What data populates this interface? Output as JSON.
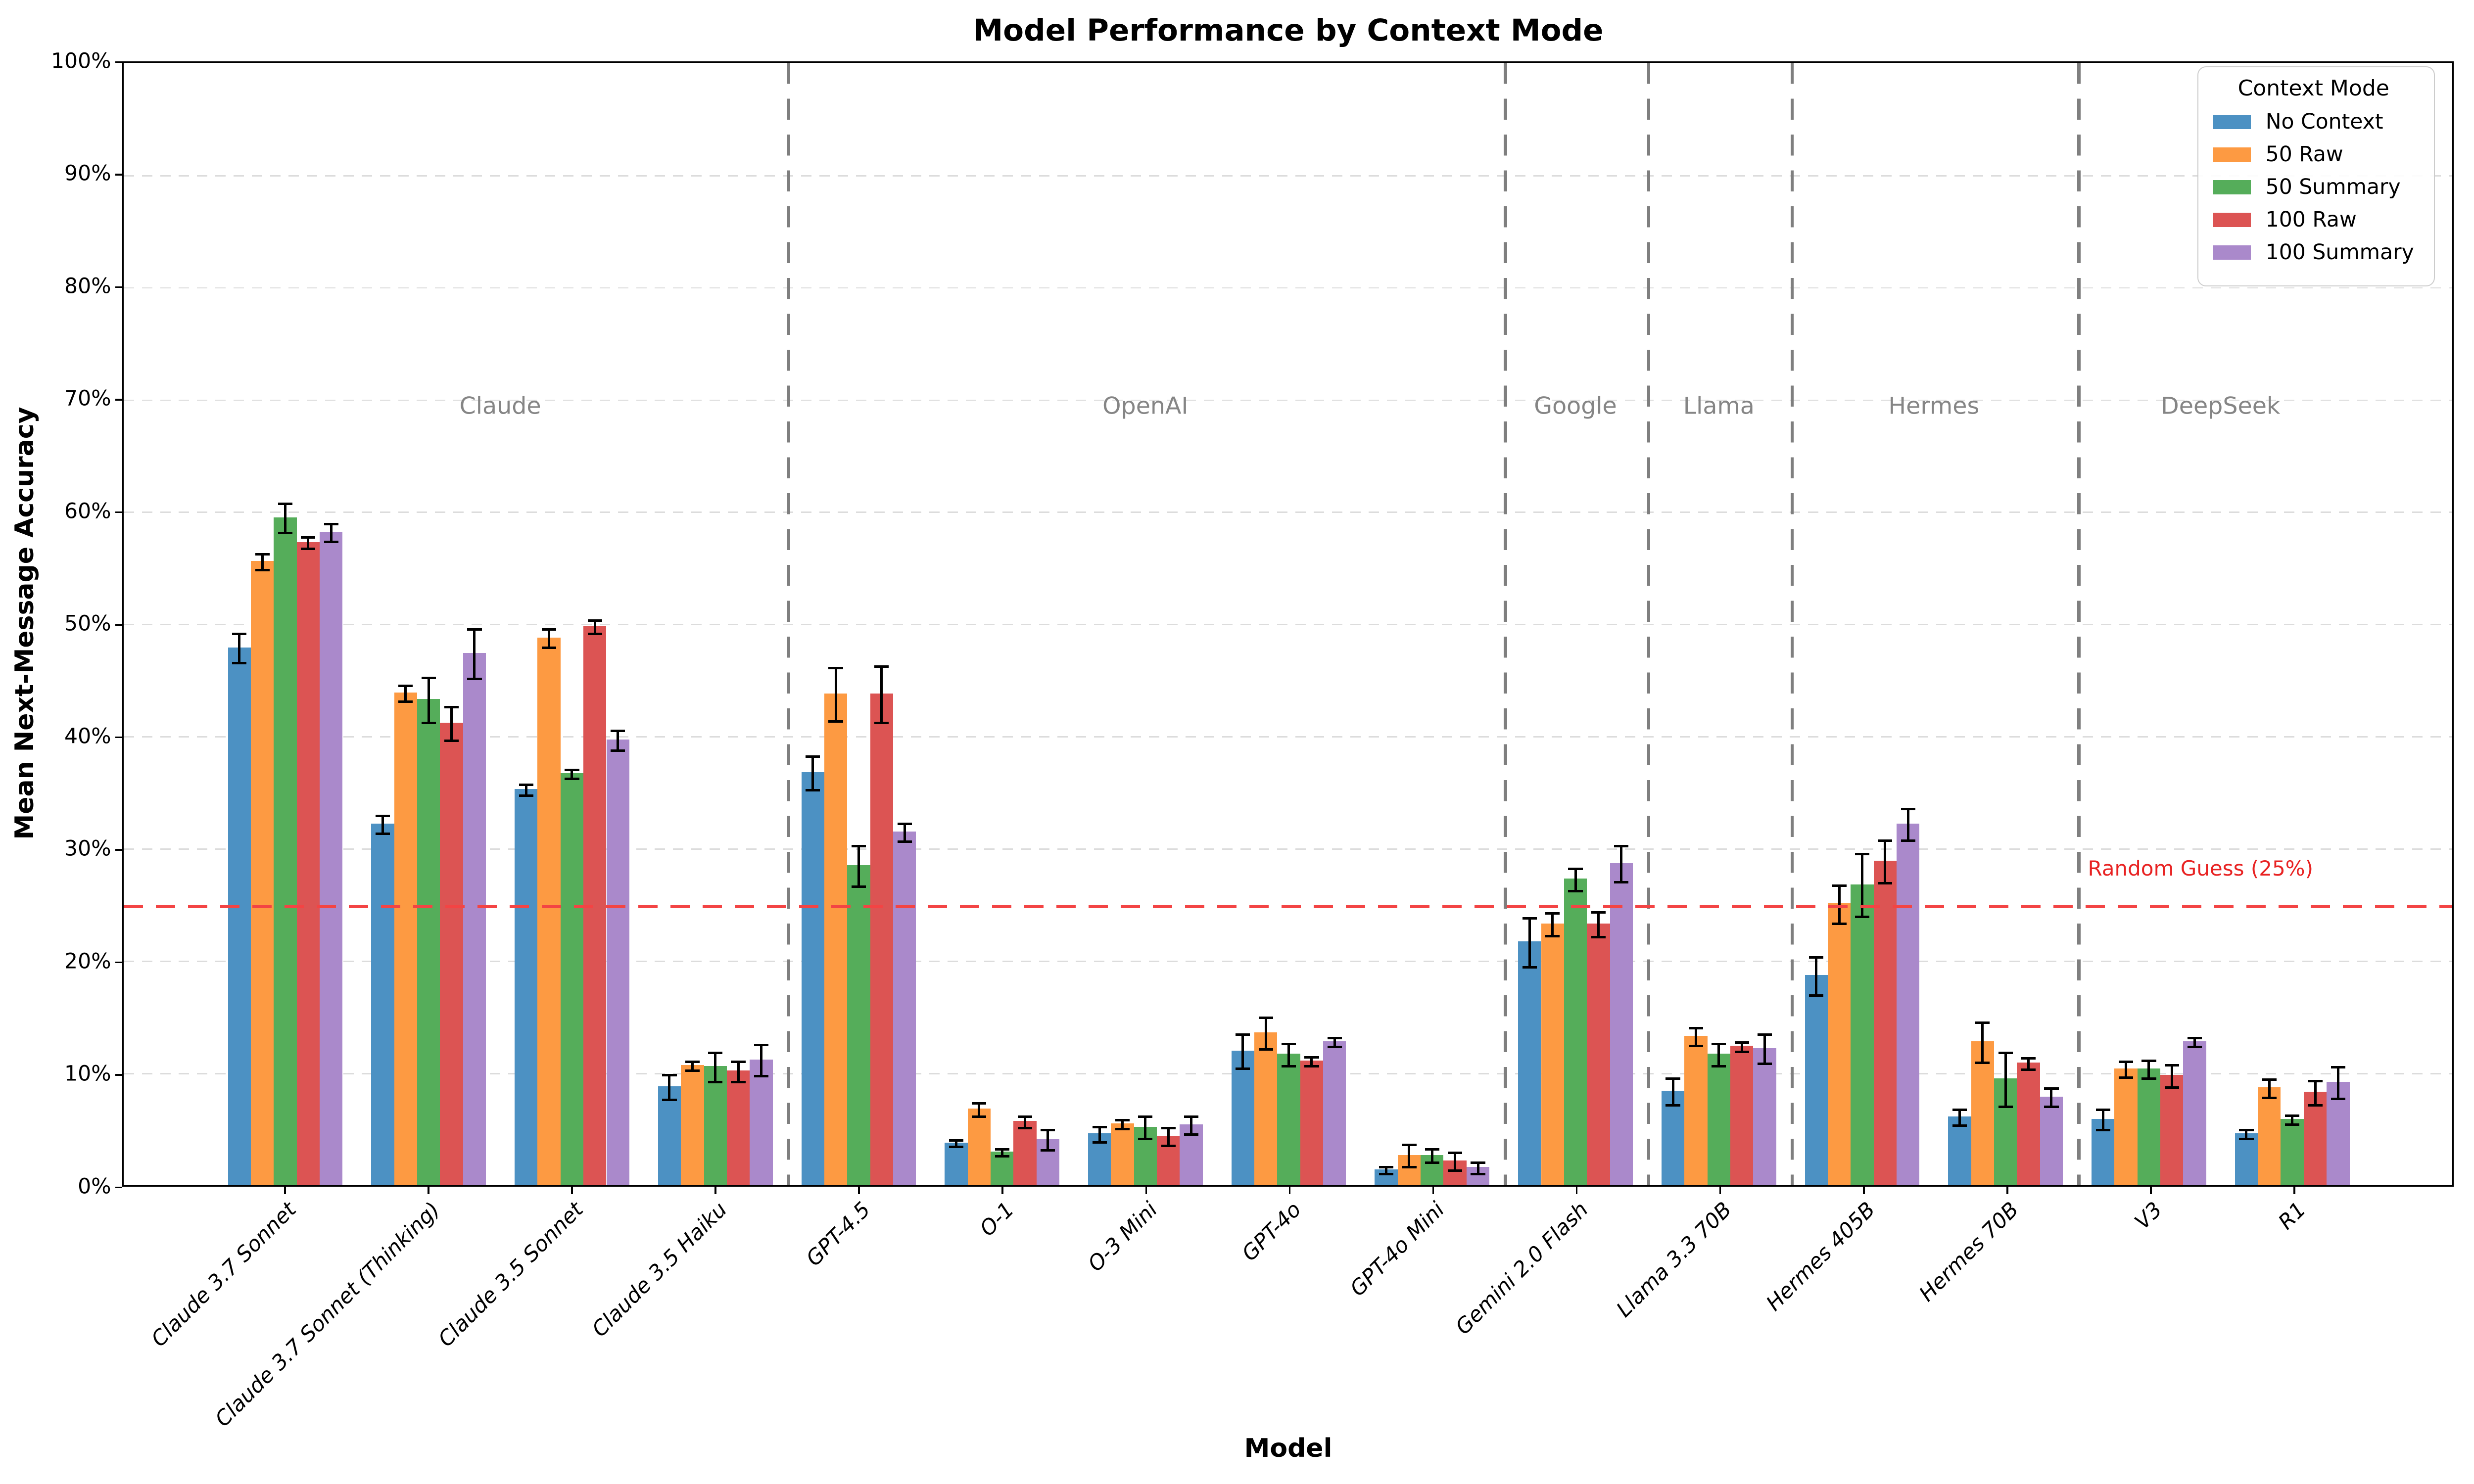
{
  "chart_data": {
    "type": "bar",
    "title": "Model Performance by Context Mode",
    "xlabel": "Model",
    "ylabel": "Mean Next-Message Accuracy",
    "ylim": [
      0,
      100
    ],
    "yticks": [
      "0%",
      "10%",
      "20%",
      "30%",
      "40%",
      "50%",
      "60%",
      "70%",
      "80%",
      "90%",
      "100%"
    ],
    "grid": "horizontal dashed",
    "legend": {
      "title": "Context Mode",
      "position": "upper right",
      "entries": [
        "No Context",
        "50 Raw",
        "50 Summary",
        "100 Raw",
        "100 Summary"
      ]
    },
    "categories": [
      "Claude 3.7 Sonnet",
      "Claude 3.7 Sonnet (Thinking)",
      "Claude 3.5 Sonnet",
      "Claude 3.5 Haiku",
      "GPT-4.5",
      "O-1",
      "O-3 Mini",
      "GPT-4o",
      "GPT-4o Mini",
      "Gemini 2.0 Flash",
      "Llama 3.3 70B",
      "Hermes 405B",
      "Hermes 70B",
      "V3",
      "R1"
    ],
    "series": [
      {
        "name": "No Context",
        "color": "#4c91c3",
        "values": [
          47.9,
          32.2,
          35.3,
          8.8,
          36.8,
          3.8,
          4.6,
          12.0,
          1.4,
          21.7,
          8.4,
          18.7,
          6.1,
          5.9,
          4.6
        ],
        "errors": [
          1.3,
          0.8,
          0.5,
          1.1,
          1.5,
          0.3,
          0.7,
          1.5,
          0.3,
          2.2,
          1.2,
          1.7,
          0.7,
          0.9,
          0.4
        ]
      },
      {
        "name": "50 Raw",
        "color": "#fd9a42",
        "values": [
          55.6,
          43.9,
          48.8,
          10.7,
          43.8,
          6.8,
          5.5,
          13.6,
          2.7,
          23.3,
          13.3,
          25.1,
          12.8,
          10.4,
          8.7
        ],
        "errors": [
          0.7,
          0.7,
          0.8,
          0.4,
          2.4,
          0.6,
          0.4,
          1.4,
          1.0,
          1.0,
          0.8,
          1.7,
          1.8,
          0.7,
          0.8
        ]
      },
      {
        "name": "50 Summary",
        "color": "#55ad5a",
        "values": [
          59.5,
          43.3,
          36.7,
          10.6,
          28.5,
          3.0,
          5.2,
          11.7,
          2.7,
          27.3,
          11.7,
          26.8,
          9.5,
          10.4,
          5.9
        ],
        "errors": [
          1.3,
          2.0,
          0.4,
          1.3,
          1.8,
          0.3,
          1.0,
          1.0,
          0.6,
          1.0,
          1.0,
          2.8,
          2.4,
          0.8,
          0.4
        ]
      },
      {
        "name": "100 Raw",
        "color": "#dc5453",
        "values": [
          57.3,
          41.2,
          49.8,
          10.2,
          43.8,
          5.7,
          4.4,
          11.1,
          2.2,
          23.3,
          12.4,
          28.9,
          10.9,
          9.8,
          8.3
        ],
        "errors": [
          0.5,
          1.5,
          0.6,
          0.9,
          2.5,
          0.5,
          0.8,
          0.4,
          0.8,
          1.1,
          0.4,
          1.9,
          0.5,
          1.0,
          1.1
        ]
      },
      {
        "name": "100 Summary",
        "color": "#aa89cb",
        "values": [
          58.2,
          47.4,
          39.7,
          11.2,
          31.5,
          4.1,
          5.4,
          12.8,
          1.6,
          28.7,
          12.2,
          32.2,
          7.9,
          12.8,
          9.2
        ],
        "errors": [
          0.8,
          2.2,
          0.9,
          1.4,
          0.8,
          0.9,
          0.8,
          0.4,
          0.5,
          1.6,
          1.3,
          1.4,
          0.8,
          0.4,
          1.4
        ]
      }
    ],
    "group_labels": [
      {
        "label": "Claude",
        "x": 1.5
      },
      {
        "label": "OpenAI",
        "x": 6.0
      },
      {
        "label": "Google",
        "x": 9.0
      },
      {
        "label": "Llama",
        "x": 10.0
      },
      {
        "label": "Hermes",
        "x": 11.5
      },
      {
        "label": "DeepSeek",
        "x": 13.5
      }
    ],
    "separators_x": [
      3.5,
      8.5,
      9.5,
      10.5,
      12.5
    ],
    "reference_line": {
      "value": 25,
      "label": "Random Guess (25%)",
      "color": "#e82222",
      "style": "dashed"
    }
  }
}
